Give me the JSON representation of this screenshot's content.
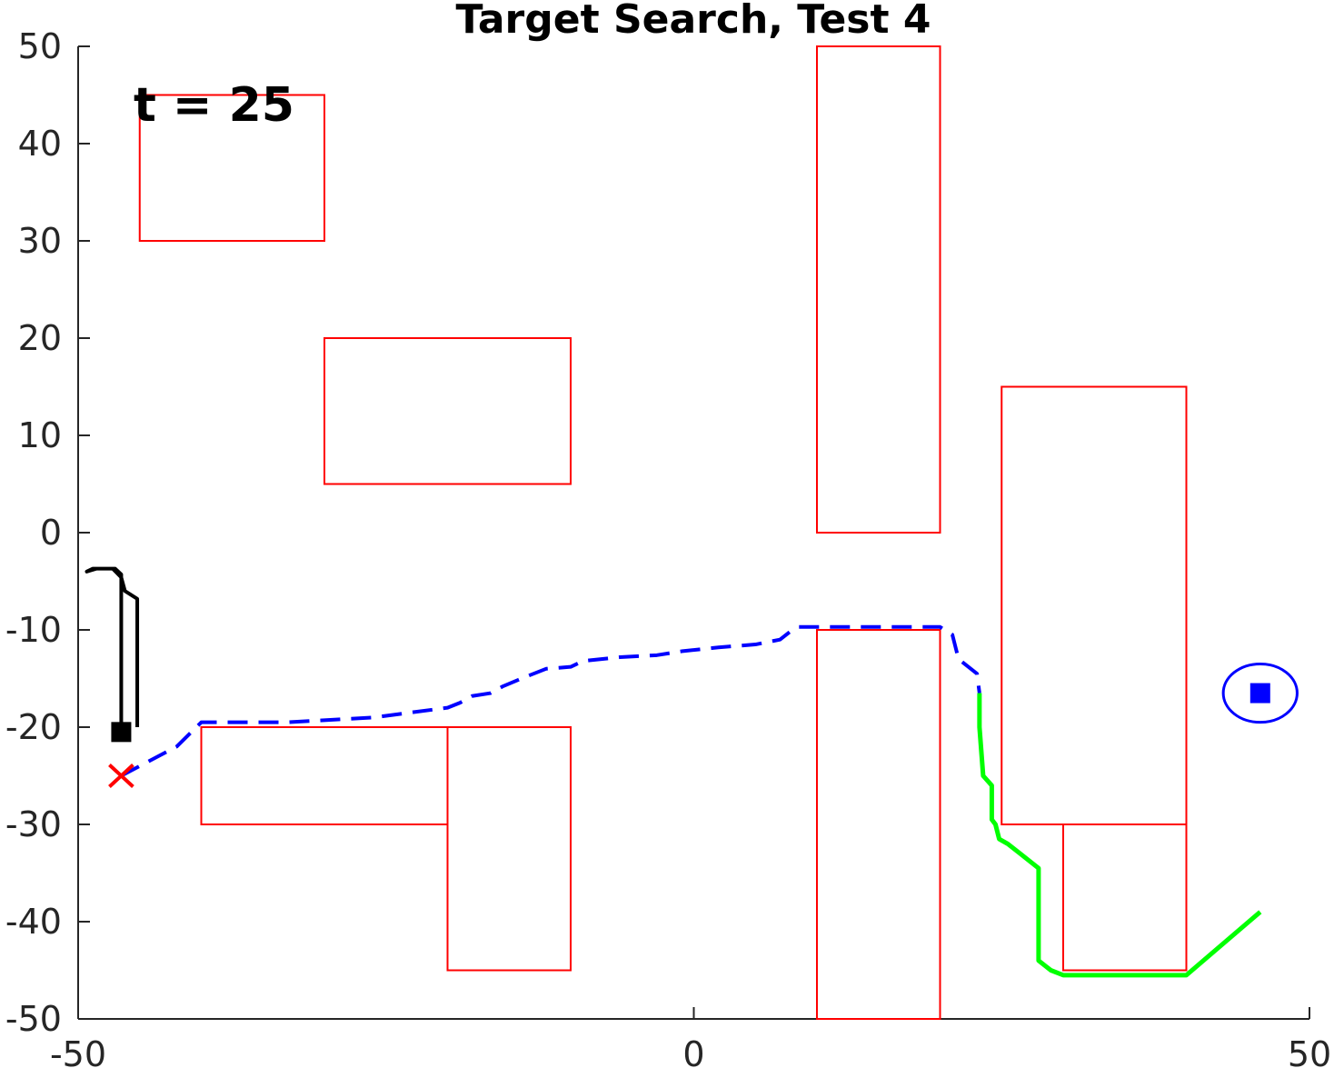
{
  "chart_data": {
    "type": "line",
    "title": "Target Search, Test 4",
    "xlabel": "",
    "ylabel": "",
    "xlim": [
      -50,
      50
    ],
    "ylim": [
      -50,
      50
    ],
    "x_ticks": [
      -50,
      0,
      50
    ],
    "x_tick_labels": [
      "-50",
      "0",
      "50"
    ],
    "y_ticks": [
      50,
      40,
      30,
      20,
      10,
      0,
      -10,
      -20,
      -30,
      -40,
      -50
    ],
    "y_tick_labels": [
      "50",
      "40",
      "30",
      "20",
      "10",
      "0",
      "-10",
      "-20",
      "-30",
      "-40",
      "-50"
    ],
    "grid": false,
    "annotation": {
      "text": "t = 25",
      "x": -45.5,
      "y": 44
    },
    "obstacle_color": "#ff0000",
    "obstacles": [
      {
        "x": -45,
        "y": 30,
        "w": 15,
        "h": 15
      },
      {
        "x": -30,
        "y": 5,
        "w": 20,
        "h": 15
      },
      {
        "x": 10,
        "y": 0,
        "w": 10,
        "h": 50
      },
      {
        "x": 25,
        "y": -30,
        "w": 15,
        "h": 45
      },
      {
        "x": -40,
        "y": -30,
        "w": 20,
        "h": 10
      },
      {
        "x": -20,
        "y": -45,
        "w": 10,
        "h": 25
      },
      {
        "x": 10,
        "y": -50,
        "w": 10,
        "h": 40
      },
      {
        "x": 30,
        "y": -45,
        "w": 10,
        "h": 15
      }
    ],
    "series": [
      {
        "style": "solid",
        "color": "#000000",
        "line_width": 4,
        "x": [
          -46.5,
          -46.5,
          -47,
          -48.5,
          -49.3,
          -48.8,
          -47.2,
          -46.5,
          -46.2,
          -45.2,
          -45.2
        ],
        "y": [
          -20.5,
          -4.3,
          -3.7,
          -3.7,
          -4,
          -3.7,
          -3.7,
          -4.6,
          -6,
          -6.8,
          -20
        ]
      },
      {
        "style": "dashed",
        "color": "#0000ff",
        "line_width": 4,
        "x": [
          -46.5,
          -42,
          -40,
          -33,
          -26,
          -23,
          -20,
          -19,
          -18,
          -16.5,
          -15.5,
          -14,
          -12,
          -10,
          -9,
          -6,
          -3,
          -1,
          2,
          5,
          7,
          8,
          8.5,
          10,
          15,
          20,
          21,
          21.5,
          23,
          23.2
        ],
        "y": [
          -25,
          -22,
          -19.5,
          -19.5,
          -19,
          -18.5,
          -18,
          -17.5,
          -16.8,
          -16.5,
          -15.8,
          -15,
          -14,
          -13.8,
          -13.2,
          -12.8,
          -12.6,
          -12.2,
          -11.8,
          -11.5,
          -11,
          -10,
          -9.7,
          -9.7,
          -9.7,
          -9.7,
          -10.5,
          -13,
          -14.5,
          -16.5
        ]
      },
      {
        "style": "solid",
        "color": "#00ff00",
        "line_width": 5,
        "x": [
          46,
          40,
          30,
          29,
          28.5,
          28,
          28,
          26.5,
          25.5,
          24.8,
          24.5,
          24.2,
          24.2,
          23.5,
          23.2,
          23.2
        ],
        "y": [
          -39,
          -45.5,
          -45.5,
          -45,
          -44.5,
          -44,
          -34.5,
          -33,
          -32,
          -31.5,
          -30,
          -29.5,
          -26,
          -25,
          -20,
          -16.5
        ]
      }
    ],
    "markers": [
      {
        "shape": "square",
        "color": "#000000",
        "x": -46.5,
        "y": -20.5
      },
      {
        "shape": "x",
        "color": "#ff0000",
        "x": -46.5,
        "y": -25
      },
      {
        "shape": "square",
        "color": "#0000ff",
        "x": 46,
        "y": -16.5
      },
      {
        "shape": "ellipse",
        "color": "#0000ff",
        "x": 46,
        "y": -16.5,
        "rx": 3,
        "ry": 3
      }
    ]
  }
}
